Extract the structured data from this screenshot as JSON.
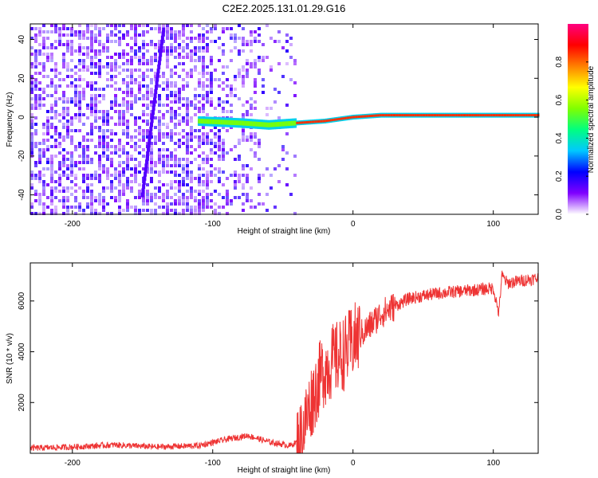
{
  "title": "C2E2.2025.131.01.29.G16",
  "chart_data": [
    {
      "type": "heatmap",
      "xlabel": "Height of straight line (km)",
      "ylabel": "Frequency (Hz)",
      "xlim": [
        -230,
        132
      ],
      "ylim": [
        -50,
        48
      ],
      "xticks": [
        -200,
        -100,
        0,
        100
      ],
      "yticks": [
        -40,
        -20,
        0,
        20,
        40
      ],
      "colorbar": {
        "label": "Normalized spectral amplitude",
        "range": [
          0,
          1
        ],
        "ticks": [
          0.0,
          0.2,
          0.4,
          0.6,
          0.8
        ],
        "colors": [
          "#ffffff",
          "#8000ff",
          "#0000ff",
          "#00c8ff",
          "#00ff80",
          "#80ff00",
          "#ffff00",
          "#ff8000",
          "#ff0000",
          "#ff0080"
        ]
      },
      "features": [
        {
          "description": "noise",
          "x_range": [
            -230,
            -40
          ],
          "freq_range": [
            -50,
            48
          ],
          "amplitude": 0.08
        },
        {
          "description": "main carrier line",
          "x": [
            -110,
            -80,
            -60,
            -40,
            -20,
            0,
            20,
            60,
            100,
            132
          ],
          "freq": [
            -2,
            -3,
            -4,
            -3,
            -2,
            0,
            1,
            1,
            1,
            1
          ],
          "amplitude": 0.85
        },
        {
          "description": "diagonal streak",
          "x": [
            -150,
            -135
          ],
          "freq": [
            -40,
            45
          ],
          "amplitude": 0.15
        }
      ]
    },
    {
      "type": "line",
      "xlabel": "Height of straight line (km)",
      "ylabel": "SNR (10 * v/v)",
      "xlim": [
        -230,
        132
      ],
      "ylim": [
        0,
        7500
      ],
      "xticks": [
        -200,
        -100,
        0,
        100
      ],
      "yticks": [
        2000,
        4000,
        6000
      ],
      "color": "#ee3333",
      "x": [
        -230,
        -200,
        -170,
        -140,
        -110,
        -90,
        -75,
        -60,
        -45,
        -38,
        -30,
        -22,
        -15,
        -10,
        -5,
        0,
        10,
        20,
        30,
        40,
        50,
        60,
        70,
        80,
        90,
        100,
        104,
        106,
        110,
        120,
        132
      ],
      "y": [
        200,
        250,
        330,
        250,
        300,
        550,
        700,
        450,
        300,
        500,
        2000,
        3200,
        3600,
        3800,
        4000,
        4400,
        4900,
        5500,
        5800,
        6100,
        6200,
        6300,
        6350,
        6400,
        6450,
        6500,
        5500,
        7000,
        6700,
        6800,
        6900
      ]
    }
  ]
}
